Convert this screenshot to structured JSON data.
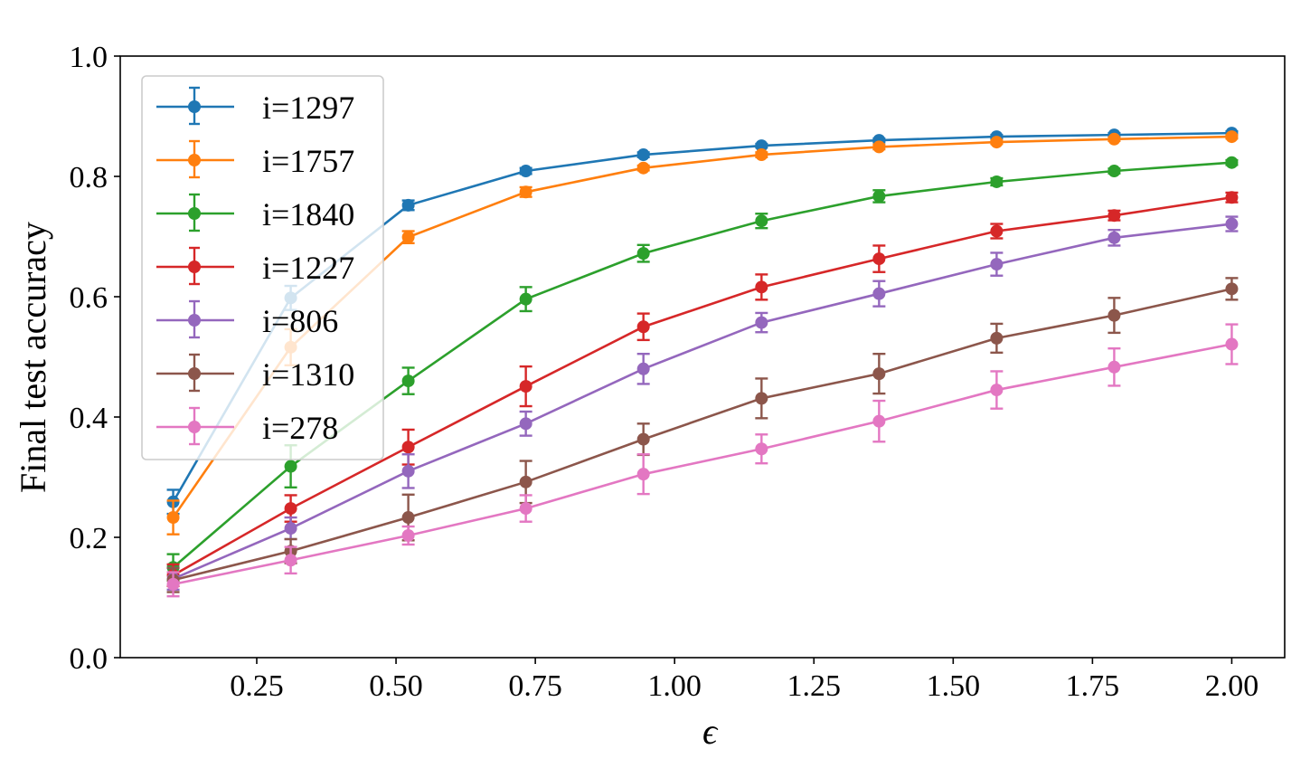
{
  "chart_data": {
    "type": "line",
    "title": "",
    "xlabel": "ϵ",
    "ylabel": "Final test accuracy",
    "xlim": [
      0.005,
      2.095
    ],
    "ylim": [
      0.0,
      1.0
    ],
    "grid": false,
    "legend_position": "upper left",
    "x": [
      0.1,
      0.311,
      0.522,
      0.733,
      0.944,
      1.156,
      1.367,
      1.578,
      1.789,
      2.0
    ],
    "x_ticks": [
      0.25,
      0.5,
      0.75,
      1.0,
      1.25,
      1.5,
      1.75,
      2.0
    ],
    "x_tick_labels": [
      "0.25",
      "0.50",
      "0.75",
      "1.00",
      "1.25",
      "1.50",
      "1.75",
      "2.00"
    ],
    "y_ticks": [
      0.0,
      0.2,
      0.4,
      0.6,
      0.8,
      1.0
    ],
    "y_tick_labels": [
      "0.0",
      "0.2",
      "0.4",
      "0.6",
      "0.8",
      "1.0"
    ],
    "series": [
      {
        "name": "i=1297",
        "color": "#1f77b4",
        "values": [
          0.259,
          0.598,
          0.752,
          0.809,
          0.836,
          0.851,
          0.86,
          0.866,
          0.869,
          0.872
        ],
        "errors": [
          0.02,
          0.02,
          0.008,
          0.005,
          0.004,
          0.003,
          0.003,
          0.003,
          0.003,
          0.003
        ]
      },
      {
        "name": "i=1757",
        "color": "#ff7f0e",
        "values": [
          0.233,
          0.516,
          0.699,
          0.774,
          0.814,
          0.836,
          0.849,
          0.857,
          0.862,
          0.866
        ],
        "errors": [
          0.028,
          0.03,
          0.01,
          0.008,
          0.004,
          0.004,
          0.004,
          0.003,
          0.003,
          0.003
        ]
      },
      {
        "name": "i=1840",
        "color": "#2ca02c",
        "values": [
          0.15,
          0.318,
          0.46,
          0.596,
          0.672,
          0.726,
          0.767,
          0.791,
          0.809,
          0.823
        ],
        "errors": [
          0.022,
          0.035,
          0.022,
          0.02,
          0.014,
          0.012,
          0.01,
          0.006,
          0.004,
          0.004
        ]
      },
      {
        "name": "i=1227",
        "color": "#d62728",
        "values": [
          0.137,
          0.248,
          0.35,
          0.451,
          0.55,
          0.616,
          0.663,
          0.709,
          0.735,
          0.765
        ],
        "errors": [
          0.018,
          0.022,
          0.029,
          0.033,
          0.022,
          0.021,
          0.022,
          0.012,
          0.008,
          0.008
        ]
      },
      {
        "name": "i=806",
        "color": "#9467bd",
        "values": [
          0.131,
          0.215,
          0.31,
          0.389,
          0.48,
          0.557,
          0.605,
          0.654,
          0.698,
          0.721
        ],
        "errors": [
          0.018,
          0.018,
          0.028,
          0.02,
          0.025,
          0.016,
          0.021,
          0.019,
          0.013,
          0.012
        ]
      },
      {
        "name": "i=1310",
        "color": "#8c564b",
        "values": [
          0.129,
          0.177,
          0.233,
          0.292,
          0.363,
          0.431,
          0.472,
          0.531,
          0.569,
          0.613
        ],
        "errors": [
          0.02,
          0.02,
          0.038,
          0.035,
          0.026,
          0.033,
          0.033,
          0.024,
          0.029,
          0.018
        ]
      },
      {
        "name": "i=278",
        "color": "#e377c2",
        "values": [
          0.122,
          0.162,
          0.203,
          0.248,
          0.305,
          0.347,
          0.393,
          0.445,
          0.483,
          0.521
        ],
        "errors": [
          0.02,
          0.022,
          0.015,
          0.022,
          0.033,
          0.024,
          0.034,
          0.031,
          0.031,
          0.033
        ]
      }
    ]
  },
  "labels": {
    "xlabel": "ϵ",
    "ylabel": "Final test accuracy"
  }
}
